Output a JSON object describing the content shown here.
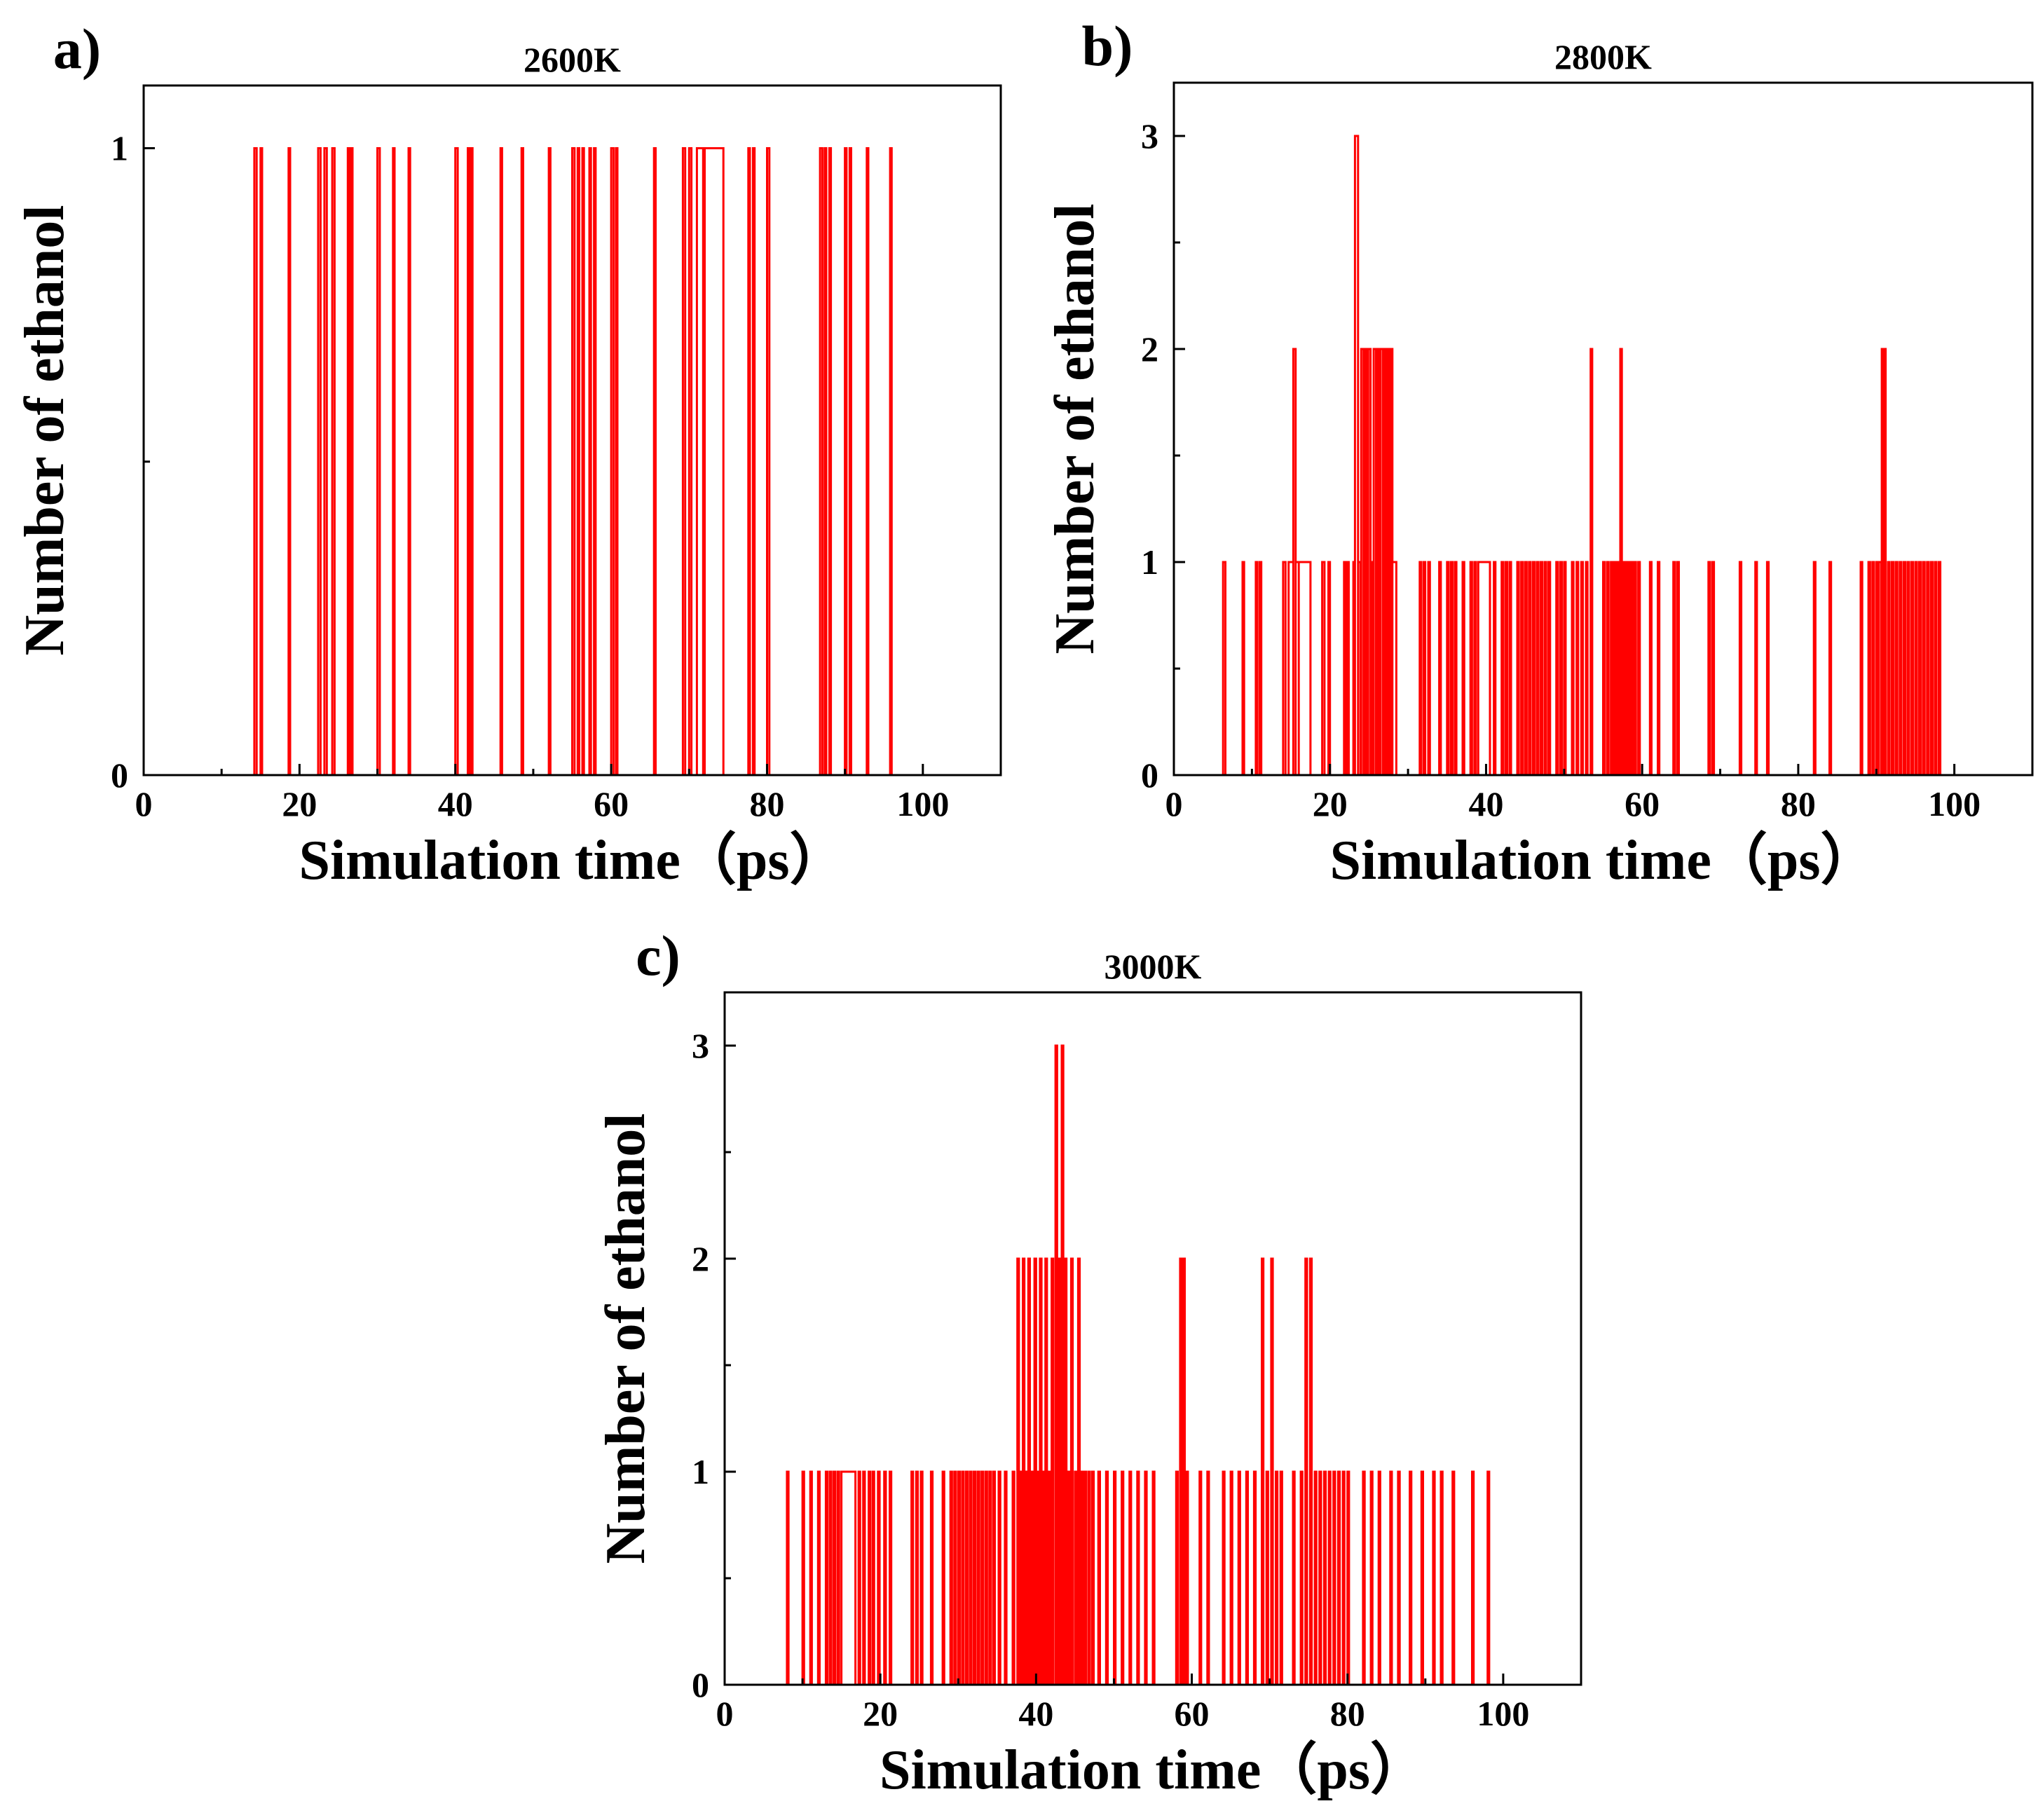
{
  "figure": {
    "series_color": "#ff0000",
    "axis_color": "#000000",
    "background": "#ffffff"
  },
  "chart_data": [
    {
      "type": "line",
      "step": true,
      "panel_label": "a)",
      "title": "2600K",
      "xlabel": "Simulation time（ps）",
      "ylabel": "Number of ethanol",
      "xlim": [
        0,
        110
      ],
      "ylim": [
        0,
        1.1
      ],
      "xticks": [
        0,
        20,
        40,
        60,
        80,
        100
      ],
      "xtick_labels": [
        "0",
        "20",
        "40",
        "60",
        "80",
        "100"
      ],
      "xminor": [
        10,
        30,
        50,
        70,
        90
      ],
      "yticks": [
        0,
        1
      ],
      "ytick_labels": [
        "0",
        "1"
      ],
      "yminor": [
        0.5
      ],
      "data_end": 100,
      "pulses": [
        [
          14.2,
          14.5,
          1
        ],
        [
          15.0,
          15.2,
          1
        ],
        [
          18.6,
          18.8,
          1
        ],
        [
          22.4,
          22.7,
          1
        ],
        [
          23.2,
          23.5,
          1
        ],
        [
          24.2,
          24.5,
          1
        ],
        [
          26.2,
          26.4,
          1
        ],
        [
          26.6,
          26.8,
          1
        ],
        [
          30.0,
          30.3,
          1
        ],
        [
          32.0,
          32.2,
          1
        ],
        [
          34.0,
          34.2,
          1
        ],
        [
          40.0,
          40.3,
          1
        ],
        [
          41.6,
          41.8,
          1
        ],
        [
          42.0,
          42.2,
          1
        ],
        [
          45.8,
          46.0,
          1
        ],
        [
          48.5,
          48.7,
          1
        ],
        [
          52.0,
          52.2,
          1
        ],
        [
          55.0,
          55.3,
          1
        ],
        [
          55.7,
          55.9,
          1
        ],
        [
          56.3,
          56.5,
          1
        ],
        [
          57.2,
          57.4,
          1
        ],
        [
          57.8,
          58.0,
          1
        ],
        [
          60.0,
          60.3,
          1
        ],
        [
          60.6,
          60.8,
          1
        ],
        [
          65.5,
          65.7,
          1
        ],
        [
          69.2,
          69.5,
          1
        ],
        [
          70.0,
          70.3,
          1
        ],
        [
          71.0,
          71.8,
          1
        ],
        [
          72.0,
          74.4,
          1
        ],
        [
          77.6,
          77.8,
          1
        ],
        [
          78.2,
          78.4,
          1
        ],
        [
          80.0,
          80.3,
          1
        ],
        [
          86.8,
          87.1,
          1
        ],
        [
          87.4,
          87.6,
          1
        ],
        [
          88.0,
          88.2,
          1
        ],
        [
          90.0,
          90.2,
          1
        ],
        [
          90.6,
          90.8,
          1
        ],
        [
          92.8,
          93.0,
          1
        ],
        [
          95.8,
          96.0,
          1
        ]
      ]
    },
    {
      "type": "line",
      "step": true,
      "panel_label": "b)",
      "title": "2800K",
      "xlabel": "Simulation time（ps）",
      "ylabel": "Number of ethanol",
      "xlim": [
        0,
        110
      ],
      "ylim": [
        0,
        3.25
      ],
      "xticks": [
        0,
        20,
        40,
        60,
        80,
        100
      ],
      "xtick_labels": [
        "0",
        "20",
        "40",
        "60",
        "80",
        "100"
      ],
      "xminor": [
        10,
        30,
        50,
        70,
        90
      ],
      "yticks": [
        0,
        1,
        2,
        3
      ],
      "ytick_labels": [
        "0",
        "1",
        "2",
        "3"
      ],
      "yminor": [
        0.5,
        1.5,
        2.5
      ],
      "data_end": 98.5,
      "pulses": [
        [
          6.3,
          6.6,
          1
        ],
        [
          8.8,
          9.0,
          1
        ],
        [
          10.5,
          10.7,
          1
        ],
        [
          11.0,
          11.2,
          1
        ],
        [
          14.0,
          14.3,
          1
        ],
        [
          14.7,
          15.3,
          1
        ],
        [
          15.3,
          15.6,
          2
        ],
        [
          15.6,
          16.0,
          1
        ],
        [
          16.0,
          17.5,
          1
        ],
        [
          19.0,
          19.3,
          1
        ],
        [
          19.8,
          20.0,
          1
        ],
        [
          21.8,
          22.0,
          1
        ],
        [
          22.2,
          22.4,
          1
        ],
        [
          23.0,
          23.2,
          1
        ],
        [
          23.2,
          23.6,
          3
        ],
        [
          23.6,
          23.9,
          1
        ],
        [
          24.0,
          24.3,
          2
        ],
        [
          24.5,
          24.7,
          2
        ],
        [
          24.9,
          25.2,
          2
        ],
        [
          25.3,
          25.5,
          1
        ],
        [
          25.6,
          25.9,
          2
        ],
        [
          26.1,
          26.3,
          2
        ],
        [
          26.5,
          26.8,
          2
        ],
        [
          27.0,
          27.2,
          2
        ],
        [
          27.4,
          27.6,
          2
        ],
        [
          27.8,
          28.0,
          2
        ],
        [
          28.0,
          28.5,
          1
        ],
        [
          31.5,
          31.7,
          1
        ],
        [
          32.0,
          32.2,
          1
        ],
        [
          32.6,
          32.8,
          1
        ],
        [
          34.0,
          34.2,
          1
        ],
        [
          35.0,
          35.2,
          1
        ],
        [
          35.5,
          35.7,
          1
        ],
        [
          36.0,
          36.2,
          1
        ],
        [
          37.0,
          37.2,
          1
        ],
        [
          38.0,
          38.2,
          1
        ],
        [
          38.5,
          38.7,
          1
        ],
        [
          39.0,
          40.5,
          1
        ],
        [
          41.0,
          41.2,
          1
        ],
        [
          42.0,
          42.2,
          1
        ],
        [
          42.5,
          42.7,
          1
        ],
        [
          43.0,
          43.2,
          1
        ],
        [
          44.0,
          44.2,
          1
        ],
        [
          44.5,
          44.7,
          1
        ],
        [
          45.0,
          45.2,
          1
        ],
        [
          45.5,
          45.7,
          1
        ],
        [
          46.0,
          46.2,
          1
        ],
        [
          46.5,
          46.7,
          1
        ],
        [
          47.0,
          47.2,
          1
        ],
        [
          47.5,
          47.7,
          1
        ],
        [
          48.0,
          48.2,
          1
        ],
        [
          49.0,
          49.2,
          1
        ],
        [
          49.5,
          49.7,
          1
        ],
        [
          50.0,
          50.2,
          1
        ],
        [
          51.0,
          51.2,
          1
        ],
        [
          51.6,
          51.8,
          1
        ],
        [
          52.2,
          52.4,
          1
        ],
        [
          52.8,
          53.0,
          1
        ],
        [
          53.4,
          53.6,
          2
        ],
        [
          55.0,
          55.2,
          1
        ],
        [
          55.5,
          55.7,
          1
        ],
        [
          56.0,
          56.2,
          1
        ],
        [
          56.4,
          56.6,
          1
        ],
        [
          56.8,
          57.0,
          1
        ],
        [
          57.2,
          57.4,
          2
        ],
        [
          57.5,
          57.7,
          1
        ],
        [
          57.8,
          58.0,
          1
        ],
        [
          58.2,
          58.4,
          1
        ],
        [
          58.6,
          58.8,
          1
        ],
        [
          59.0,
          59.2,
          1
        ],
        [
          59.5,
          59.7,
          1
        ],
        [
          61.0,
          61.2,
          1
        ],
        [
          62.0,
          62.2,
          1
        ],
        [
          64.0,
          64.2,
          1
        ],
        [
          64.5,
          64.7,
          1
        ],
        [
          68.5,
          68.7,
          1
        ],
        [
          69.0,
          69.2,
          1
        ],
        [
          72.5,
          72.7,
          1
        ],
        [
          74.5,
          74.7,
          1
        ],
        [
          76.0,
          76.2,
          1
        ],
        [
          82.0,
          82.2,
          1
        ],
        [
          84.0,
          84.2,
          1
        ],
        [
          88.0,
          88.2,
          1
        ],
        [
          89.0,
          89.2,
          1
        ],
        [
          89.5,
          89.7,
          1
        ],
        [
          90.0,
          90.2,
          1
        ],
        [
          90.3,
          90.6,
          1
        ],
        [
          90.7,
          90.9,
          2
        ],
        [
          91.0,
          91.2,
          2
        ],
        [
          91.5,
          91.7,
          1
        ],
        [
          92.0,
          92.2,
          1
        ],
        [
          92.5,
          92.7,
          1
        ],
        [
          93.0,
          93.2,
          1
        ],
        [
          93.5,
          93.7,
          1
        ],
        [
          94.0,
          94.2,
          1
        ],
        [
          94.5,
          94.7,
          1
        ],
        [
          95.0,
          95.2,
          1
        ],
        [
          95.5,
          95.7,
          1
        ],
        [
          96.0,
          96.2,
          1
        ],
        [
          96.5,
          96.7,
          1
        ],
        [
          97.0,
          97.2,
          1
        ],
        [
          97.5,
          97.7,
          1
        ],
        [
          98.0,
          98.2,
          1
        ]
      ]
    },
    {
      "type": "line",
      "step": true,
      "panel_label": "c)",
      "title": "3000K",
      "xlabel": "Simulation time（ps）",
      "ylabel": "Number of ethanol",
      "xlim": [
        0,
        110
      ],
      "ylim": [
        0,
        3.25
      ],
      "xticks": [
        0,
        20,
        40,
        60,
        80,
        100
      ],
      "xtick_labels": [
        "0",
        "20",
        "40",
        "60",
        "80",
        "100"
      ],
      "xminor": [
        10,
        30,
        50,
        70,
        90
      ],
      "yticks": [
        0,
        1,
        2,
        3
      ],
      "ytick_labels": [
        "0",
        "1",
        "2",
        "3"
      ],
      "yminor": [
        0.5,
        1.5,
        2.5
      ],
      "data_end": 100,
      "pulses": [
        [
          8.0,
          8.2,
          1
        ],
        [
          10.0,
          10.2,
          1
        ],
        [
          11.0,
          11.2,
          1
        ],
        [
          12.0,
          12.2,
          1
        ],
        [
          13.0,
          13.2,
          1
        ],
        [
          13.5,
          13.7,
          1
        ],
        [
          14.0,
          14.2,
          1
        ],
        [
          14.5,
          14.7,
          1
        ],
        [
          15.0,
          16.8,
          1
        ],
        [
          17.2,
          17.4,
          1
        ],
        [
          17.8,
          18.0,
          1
        ],
        [
          18.5,
          18.7,
          1
        ],
        [
          19.0,
          19.2,
          1
        ],
        [
          19.7,
          19.9,
          1
        ],
        [
          20.5,
          20.7,
          1
        ],
        [
          21.2,
          21.4,
          1
        ],
        [
          24.0,
          24.2,
          1
        ],
        [
          24.6,
          24.8,
          1
        ],
        [
          25.2,
          25.4,
          1
        ],
        [
          26.5,
          26.7,
          1
        ],
        [
          28.0,
          28.2,
          1
        ],
        [
          29.0,
          29.2,
          1
        ],
        [
          29.5,
          29.7,
          1
        ],
        [
          30.0,
          30.2,
          1
        ],
        [
          30.5,
          30.7,
          1
        ],
        [
          31.0,
          31.2,
          1
        ],
        [
          31.5,
          31.7,
          1
        ],
        [
          32.0,
          32.2,
          1
        ],
        [
          32.5,
          32.7,
          1
        ],
        [
          33.0,
          33.2,
          1
        ],
        [
          33.5,
          33.7,
          1
        ],
        [
          34.0,
          34.2,
          1
        ],
        [
          34.5,
          34.7,
          1
        ],
        [
          35.2,
          35.4,
          1
        ],
        [
          36.0,
          36.2,
          1
        ],
        [
          37.0,
          37.2,
          1
        ],
        [
          37.6,
          37.8,
          2
        ],
        [
          38.0,
          38.2,
          1
        ],
        [
          38.3,
          38.5,
          2
        ],
        [
          38.7,
          38.9,
          1
        ],
        [
          39.0,
          39.2,
          2
        ],
        [
          39.4,
          39.6,
          1
        ],
        [
          39.8,
          40.0,
          2
        ],
        [
          40.2,
          40.4,
          1
        ],
        [
          40.5,
          40.7,
          2
        ],
        [
          40.9,
          41.1,
          1
        ],
        [
          41.2,
          41.4,
          2
        ],
        [
          41.6,
          41.8,
          1
        ],
        [
          42.0,
          42.2,
          2
        ],
        [
          42.5,
          42.7,
          3
        ],
        [
          42.9,
          43.1,
          2
        ],
        [
          43.3,
          43.5,
          3
        ],
        [
          43.7,
          43.9,
          2
        ],
        [
          44.1,
          44.3,
          1
        ],
        [
          44.5,
          44.7,
          2
        ],
        [
          45.0,
          45.2,
          1
        ],
        [
          45.4,
          45.6,
          2
        ],
        [
          45.8,
          46.0,
          1
        ],
        [
          46.2,
          46.4,
          1
        ],
        [
          46.7,
          46.9,
          1
        ],
        [
          47.2,
          47.4,
          1
        ],
        [
          48.0,
          48.2,
          1
        ],
        [
          49.0,
          49.2,
          1
        ],
        [
          50.0,
          50.2,
          1
        ],
        [
          51.0,
          51.2,
          1
        ],
        [
          52.0,
          52.2,
          1
        ],
        [
          53.0,
          53.2,
          1
        ],
        [
          54.0,
          54.2,
          1
        ],
        [
          55.0,
          55.2,
          1
        ],
        [
          58.0,
          58.2,
          1
        ],
        [
          58.5,
          58.7,
          2
        ],
        [
          58.9,
          59.1,
          2
        ],
        [
          59.3,
          59.5,
          1
        ],
        [
          61.0,
          61.2,
          1
        ],
        [
          62.0,
          62.2,
          1
        ],
        [
          64.0,
          64.2,
          1
        ],
        [
          65.0,
          65.2,
          1
        ],
        [
          66.0,
          66.2,
          1
        ],
        [
          67.0,
          67.2,
          1
        ],
        [
          68.0,
          68.2,
          1
        ],
        [
          69.0,
          69.2,
          2
        ],
        [
          69.6,
          69.8,
          1
        ],
        [
          70.2,
          70.4,
          2
        ],
        [
          70.8,
          71.0,
          1
        ],
        [
          71.4,
          71.6,
          1
        ],
        [
          73.0,
          73.2,
          1
        ],
        [
          74.0,
          74.2,
          1
        ],
        [
          74.6,
          74.8,
          2
        ],
        [
          75.2,
          75.4,
          2
        ],
        [
          75.8,
          76.0,
          1
        ],
        [
          76.4,
          76.6,
          1
        ],
        [
          77.0,
          77.2,
          1
        ],
        [
          77.6,
          77.8,
          1
        ],
        [
          78.2,
          78.4,
          1
        ],
        [
          78.8,
          79.0,
          1
        ],
        [
          79.4,
          79.6,
          1
        ],
        [
          80.0,
          80.2,
          1
        ],
        [
          82.0,
          82.2,
          1
        ],
        [
          83.0,
          83.2,
          1
        ],
        [
          84.0,
          84.2,
          1
        ],
        [
          85.5,
          85.7,
          1
        ],
        [
          86.5,
          86.7,
          1
        ],
        [
          88.0,
          88.2,
          1
        ],
        [
          89.5,
          89.7,
          1
        ],
        [
          91.0,
          91.2,
          1
        ],
        [
          92.0,
          92.2,
          1
        ],
        [
          93.5,
          93.7,
          1
        ],
        [
          96.0,
          96.2,
          1
        ],
        [
          98.0,
          98.2,
          1
        ]
      ]
    }
  ]
}
